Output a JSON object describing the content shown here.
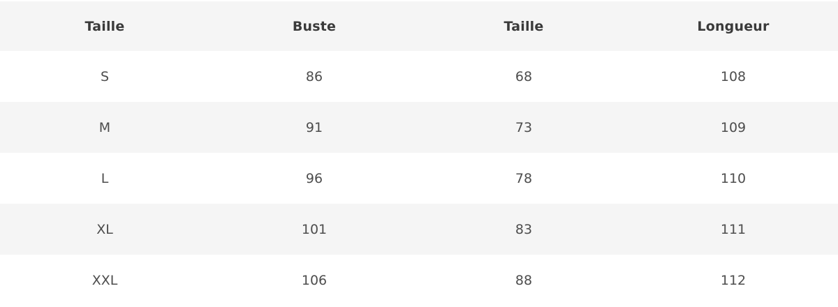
{
  "table": {
    "columns": [
      "Taille",
      "Buste",
      "Taille",
      "Longueur"
    ],
    "rows": [
      [
        "S",
        "86",
        "68",
        "108"
      ],
      [
        "M",
        "91",
        "73",
        "109"
      ],
      [
        "L",
        "96",
        "78",
        "110"
      ],
      [
        "XL",
        "101",
        "83",
        "111"
      ],
      [
        "XXL",
        "106",
        "88",
        "112"
      ]
    ]
  },
  "colors": {
    "stripe_background": "#f5f5f5",
    "row_background": "#ffffff",
    "header_text": "#3a3a3a",
    "cell_text": "#4d4d4d"
  },
  "chart_data": {
    "type": "table",
    "columns": [
      "Taille",
      "Buste",
      "Taille",
      "Longueur"
    ],
    "rows": [
      {
        "taille": "S",
        "buste": 86,
        "taille_cm": 68,
        "longueur": 108
      },
      {
        "taille": "M",
        "buste": 91,
        "taille_cm": 73,
        "longueur": 109
      },
      {
        "taille": "L",
        "buste": 96,
        "taille_cm": 78,
        "longueur": 110
      },
      {
        "taille": "XL",
        "buste": 101,
        "taille_cm": 83,
        "longueur": 111
      },
      {
        "taille": "XXL",
        "buste": 106,
        "taille_cm": 88,
        "longueur": 112
      }
    ],
    "layout_hints": {
      "striped_rows": true,
      "header_band": true,
      "all_cells_centered": true,
      "grid": false
    }
  }
}
